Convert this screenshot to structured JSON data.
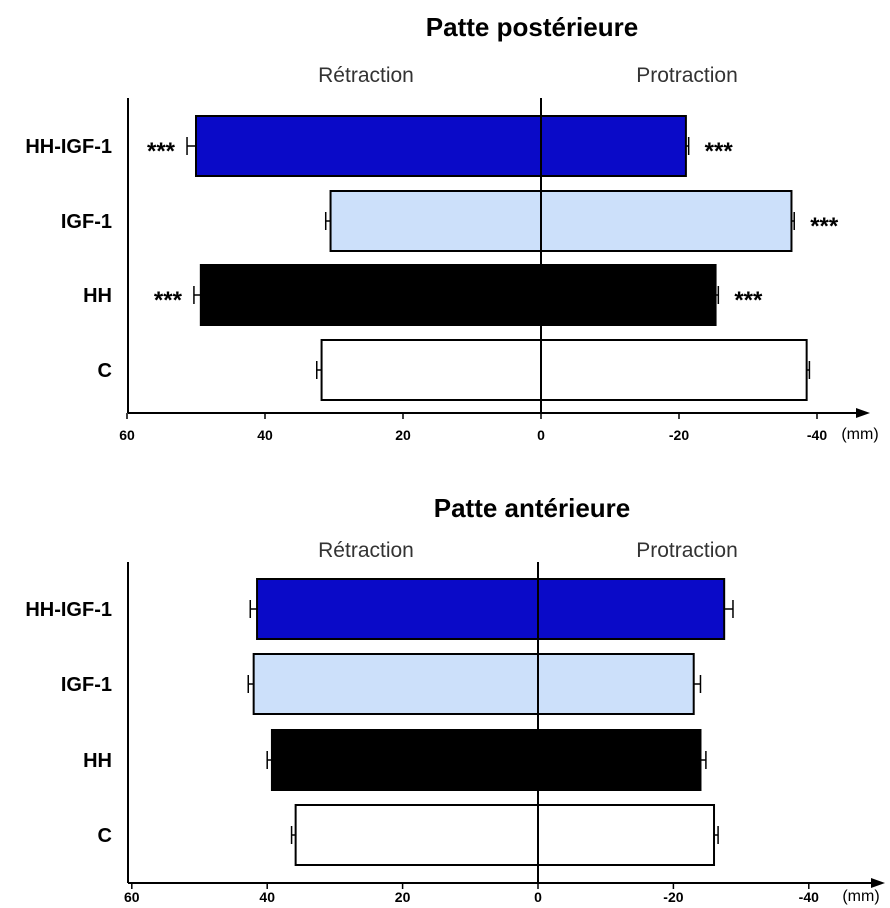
{
  "chart_data": [
    {
      "type": "bar",
      "orientation": "horizontal-diverging",
      "title": "Patte postérieure",
      "left_label": "Rétraction",
      "right_label": "Protraction",
      "unit": "(mm)",
      "x_ticks": [
        "60",
        "40",
        "20",
        "0",
        "-20",
        "-40"
      ],
      "x_tick_values": [
        60,
        40,
        20,
        0,
        -20,
        -40
      ],
      "xlim": [
        60,
        -44
      ],
      "categories": [
        "HH-IGF-1",
        "IGF-1",
        "HH",
        "C"
      ],
      "colors": [
        "#0a0ac8",
        "#cce0fa",
        "#000000",
        "#ffffff"
      ],
      "series": [
        {
          "name": "Rétraction",
          "values": [
            50,
            30.5,
            49.3,
            31.8
          ],
          "errors": [
            1.3,
            0.7,
            1.0,
            0.7
          ],
          "significance": [
            "***",
            "",
            "***",
            ""
          ]
        },
        {
          "name": "Protraction",
          "values": [
            -21,
            -36.3,
            -25.3,
            -38.5
          ],
          "errors": [
            0.4,
            0.4,
            0.4,
            0.4
          ],
          "significance": [
            "***",
            "***",
            "***",
            ""
          ]
        }
      ]
    },
    {
      "type": "bar",
      "orientation": "horizontal-diverging",
      "title": "Patte antérieure",
      "left_label": "Rétraction",
      "right_label": "Protraction",
      "unit": "(mm)",
      "x_ticks": [
        "60",
        "40",
        "20",
        "0",
        "-20",
        "-40"
      ],
      "x_tick_values": [
        60,
        40,
        20,
        0,
        -20,
        -40
      ],
      "xlim": [
        60,
        -44
      ],
      "categories": [
        "HH-IGF-1",
        "IGF-1",
        "HH",
        "C"
      ],
      "colors": [
        "#0a0ac8",
        "#cce0fa",
        "#000000",
        "#ffffff"
      ],
      "series": [
        {
          "name": "Rétraction",
          "values": [
            41.5,
            42,
            39.3,
            35.8
          ],
          "errors": [
            1.0,
            0.8,
            0.7,
            0.6
          ],
          "significance": [
            "",
            "",
            "",
            ""
          ]
        },
        {
          "name": "Protraction",
          "values": [
            -27.5,
            -23,
            -24,
            -26
          ],
          "errors": [
            1.3,
            1.0,
            0.8,
            0.6
          ],
          "significance": [
            "",
            "",
            "",
            ""
          ]
        }
      ]
    }
  ]
}
